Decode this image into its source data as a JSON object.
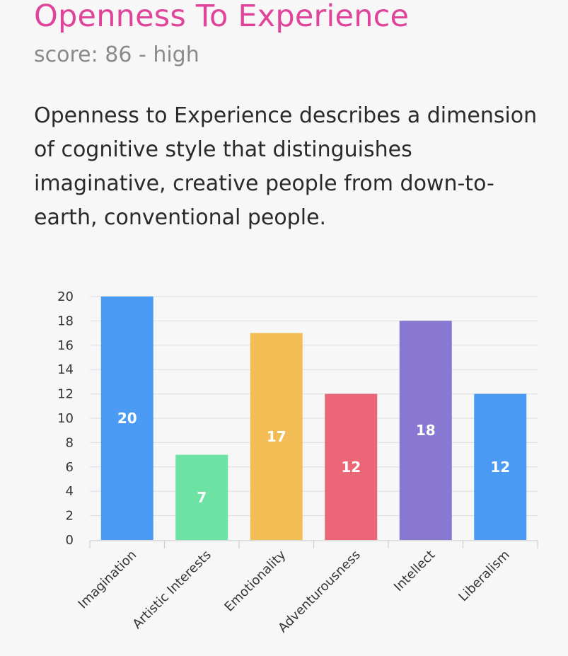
{
  "header": {
    "title": "Openness To Experience",
    "score_line": "score: 86 - high"
  },
  "description": "Openness to Experience describes a dimension of cognitive style that distinguishes imaginative, creative people from down-to-earth, conventional people.",
  "chart_data": {
    "type": "bar",
    "title": "",
    "xlabel": "",
    "ylabel": "",
    "categories": [
      "Imagination",
      "Artistic Interests",
      "Emotionality",
      "Adventurousness",
      "Intellect",
      "Liberalism"
    ],
    "values": [
      20,
      7,
      17,
      12,
      18,
      12
    ],
    "colors": [
      "#4b9bf4",
      "#6ce3a3",
      "#f2bd55",
      "#eb6676",
      "#8878d2",
      "#4b9bf4"
    ],
    "ylim": [
      0,
      20
    ],
    "yticks": [
      0,
      2,
      4,
      6,
      8,
      10,
      12,
      14,
      16,
      18,
      20
    ],
    "data_labels": true,
    "grid": true,
    "legend": "none"
  }
}
